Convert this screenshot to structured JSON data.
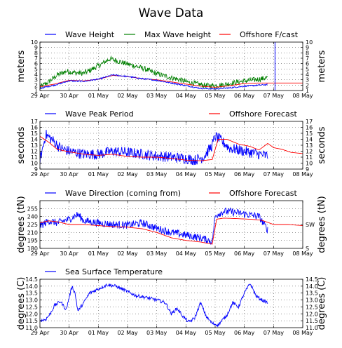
{
  "chart_data": {
    "title": "Wave Data",
    "x_ticks": [
      "29 Apr",
      "30 Apr",
      "01 May",
      "02 May",
      "03 May",
      "04 May",
      "05 May",
      "06 May",
      "07 May",
      "08 May"
    ],
    "grid": "dotted",
    "panels": [
      {
        "id": "height",
        "type": "line",
        "ylabel": "meters",
        "ylabel_right": "meters",
        "ylim": [
          1,
          10
        ],
        "y_ticks": [
          1,
          2,
          3,
          4,
          5,
          6,
          7,
          8,
          9,
          10
        ],
        "y_ticks_right": [
          "1",
          "2",
          "3",
          "4",
          "5",
          "6",
          "7",
          "8",
          "9",
          "10"
        ],
        "series": [
          {
            "name": "Max Wave height",
            "color": "#008000",
            "noise": 0.5,
            "x": [
              0,
              0.3,
              0.6,
              0.9,
              1.2,
              1.5,
              1.8,
              2.1,
              2.4,
              2.7,
              3.0,
              3.3,
              3.6,
              3.9,
              4.2,
              4.5,
              4.8,
              5.1,
              5.4,
              5.7,
              6.0,
              6.3,
              6.6,
              6.9,
              7.2,
              7.5,
              7.8
            ],
            "y": [
              1.6,
              2.6,
              3.9,
              4.6,
              4.3,
              4.2,
              5.0,
              5.9,
              6.9,
              6.4,
              5.9,
              5.5,
              5.0,
              4.3,
              3.8,
              3.4,
              3.0,
              2.5,
              2.2,
              1.9,
              1.9,
              2.1,
              2.4,
              2.7,
              2.9,
              3.1,
              3.4
            ]
          },
          {
            "name": "Offshore F/cast",
            "color": "#ff0000",
            "noise": 0,
            "x": [
              0,
              0.5,
              1.0,
              1.5,
              2.0,
              2.5,
              3.0,
              3.5,
              4.0,
              4.5,
              5.0,
              5.5,
              6.0,
              6.5,
              7.0,
              7.5,
              8.0,
              8.5,
              9.0
            ],
            "y": [
              1.7,
              2.2,
              2.9,
              2.8,
              3.1,
              3.8,
              3.6,
              3.2,
              3.0,
              2.6,
              2.2,
              1.8,
              1.6,
              1.9,
              2.3,
              2.4,
              2.4,
              2.4,
              2.4
            ]
          },
          {
            "name": "Wave Height",
            "color": "#0000ff",
            "noise": 0.12,
            "x": [
              0,
              0.5,
              1.0,
              1.5,
              2.0,
              2.5,
              3.0,
              3.5,
              4.0,
              4.5,
              5.0,
              5.5,
              6.0,
              6.5,
              7.0,
              7.5,
              7.8
            ],
            "y": [
              1.4,
              2.0,
              2.8,
              2.7,
              3.1,
              3.9,
              3.6,
              3.2,
              2.9,
              2.4,
              1.9,
              1.4,
              1.3,
              1.5,
              1.8,
              2.0,
              2.1
            ],
            "spike": {
              "x": 8.05,
              "y": 10
            }
          }
        ]
      },
      {
        "id": "period",
        "type": "line",
        "ylabel": "seconds",
        "ylabel_right": "seconds",
        "ylim": [
          9,
          17
        ],
        "y_ticks": [
          9,
          10,
          11,
          12,
          13,
          14,
          15,
          16,
          17
        ],
        "y_ticks_right": [
          "9",
          "10",
          "11",
          "12",
          "13",
          "14",
          "15",
          "16",
          "17"
        ],
        "series": [
          {
            "name": "Wave Peak Period",
            "color": "#0000ff",
            "noise": 0.9,
            "x": [
              0,
              0.2,
              0.4,
              0.7,
              1.0,
              1.5,
              2.0,
              2.5,
              3.0,
              3.5,
              4.0,
              4.5,
              5.0,
              5.3,
              5.6,
              5.9,
              6.0,
              6.2,
              6.5,
              7.0,
              7.5,
              7.8
            ],
            "y": [
              10.5,
              14.8,
              14.0,
              12.5,
              12.0,
              11.5,
              11.5,
              12.0,
              11.8,
              11.5,
              11.2,
              11.0,
              10.8,
              10.5,
              11.0,
              13.0,
              14.5,
              13.8,
              12.5,
              12.0,
              11.5,
              11.2
            ]
          },
          {
            "name": "Offshore Forecast",
            "color": "#ff0000",
            "noise": 0,
            "x": [
              0,
              0.3,
              0.6,
              1.0,
              1.5,
              2.0,
              2.5,
              3.0,
              3.5,
              4.0,
              4.5,
              5.0,
              5.5,
              5.9,
              6.1,
              6.4,
              6.8,
              7.2,
              7.5,
              7.8,
              8.0,
              8.3,
              8.6,
              9.0
            ],
            "y": [
              14.5,
              13.5,
              12.3,
              11.9,
              11.5,
              11.3,
              11.5,
              11.1,
              11.0,
              11.0,
              10.8,
              10.5,
              10.4,
              10.6,
              14.0,
              14.0,
              13.2,
              12.8,
              12.2,
              13.3,
              12.6,
              12.3,
              11.8,
              11.6
            ]
          }
        ]
      },
      {
        "id": "direction",
        "type": "line",
        "ylabel": "degrees (tN)",
        "ylabel_right": "degrees (tN)",
        "ylim": [
          180,
          270
        ],
        "y_ticks": [
          180,
          195,
          210,
          225,
          240,
          255
        ],
        "y_ticks_right": [
          "S",
          "",
          "",
          "SW",
          "",
          ""
        ],
        "right_tick_values": [
          180,
          225
        ],
        "series": [
          {
            "name": "Wave Direction (coming from)",
            "color": "#0000ff",
            "noise": 7,
            "x": [
              0,
              0.3,
              0.6,
              1.0,
              1.3,
              1.5,
              2.0,
              2.5,
              3.0,
              3.5,
              4.0,
              4.5,
              5.0,
              5.5,
              5.9,
              6.0,
              6.1,
              6.3,
              6.7,
              7.0,
              7.5,
              7.8
            ],
            "y": [
              222,
              232,
              228,
              235,
              244,
              232,
              228,
              225,
              224,
              228,
              218,
              210,
              205,
              200,
              193,
              240,
              245,
              250,
              248,
              245,
              240,
              215
            ]
          },
          {
            "name": "Offshore Forecast",
            "color": "#ff0000",
            "noise": 0,
            "x": [
              0,
              0.3,
              0.6,
              1.0,
              1.5,
              2.0,
              2.5,
              3.0,
              3.5,
              4.0,
              4.5,
              5.0,
              5.5,
              5.9,
              6.05,
              6.3,
              6.8,
              7.2,
              7.6,
              8.0,
              8.5,
              9.0
            ],
            "y": [
              228,
              232,
              230,
              225,
              225,
              223,
              221,
              220,
              217,
              210,
              200,
              195,
              192,
              188,
              235,
              237,
              236,
              235,
              233,
              225,
              225,
              223
            ]
          }
        ]
      },
      {
        "id": "sst",
        "type": "line",
        "ylabel": "degrees (C)",
        "ylabel_right": "degrees (C)",
        "ylim": [
          11.0,
          14.5
        ],
        "y_ticks": [
          11.0,
          11.5,
          12.0,
          12.5,
          13.0,
          13.5,
          14.0,
          14.5
        ],
        "y_ticks_right": [
          "11.0",
          "11.5",
          "12.0",
          "12.5",
          "13.0",
          "13.5",
          "14.0",
          "14.5"
        ],
        "series": [
          {
            "name": "Sea Surface Temperature",
            "color": "#0000ff",
            "noise": 0.12,
            "x": [
              0,
              0.2,
              0.35,
              0.5,
              0.7,
              0.9,
              1.0,
              1.1,
              1.2,
              1.3,
              1.5,
              1.7,
              2.0,
              2.3,
              2.6,
              3.0,
              3.3,
              3.6,
              4.0,
              4.3,
              4.5,
              4.7,
              4.9,
              5.1,
              5.3,
              5.5,
              5.7,
              5.9,
              6.1,
              6.4,
              6.6,
              6.8,
              7.0,
              7.2,
              7.4,
              7.6,
              7.8
            ],
            "y": [
              11.5,
              11.6,
              12.0,
              12.6,
              12.9,
              12.3,
              13.2,
              14.0,
              13.5,
              12.2,
              12.8,
              13.5,
              13.8,
              14.1,
              14.0,
              13.6,
              13.3,
              13.2,
              13.0,
              12.8,
              12.0,
              12.4,
              11.8,
              11.4,
              11.7,
              12.8,
              11.8,
              11.3,
              11.2,
              11.9,
              12.8,
              12.5,
              13.5,
              14.2,
              13.3,
              13.0,
              12.8
            ]
          }
        ]
      }
    ]
  }
}
